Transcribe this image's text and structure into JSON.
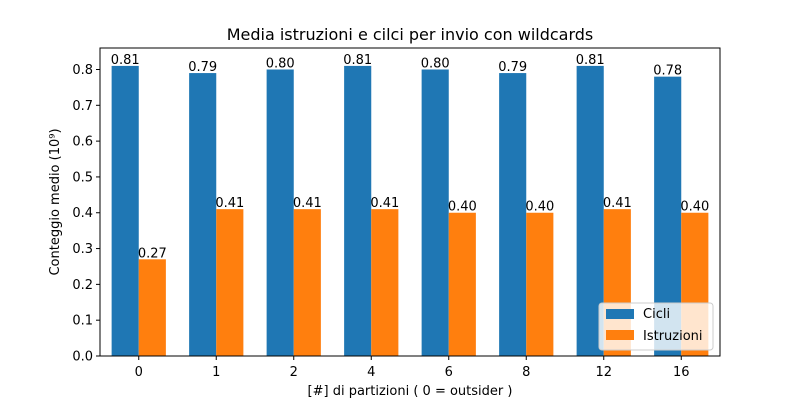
{
  "chart_data": {
    "type": "bar",
    "title": "Media istruzioni e cilci per invio con wildcards",
    "xlabel": "[#] di partizioni ( 0 = outsider )",
    "ylabel": "Conteggio medio (10⁹)",
    "categories": [
      "0",
      "1",
      "2",
      "4",
      "6",
      "8",
      "12",
      "16"
    ],
    "series": [
      {
        "name": "Cicli",
        "color": "#1f77b4",
        "values": [
          0.81,
          0.79,
          0.8,
          0.81,
          0.8,
          0.79,
          0.81,
          0.78
        ],
        "labels": [
          "0.81",
          "0.79",
          "0.80",
          "0.81",
          "0.80",
          "0.79",
          "0.81",
          "0.78"
        ]
      },
      {
        "name": "Istruzioni",
        "color": "#ff7f0e",
        "values": [
          0.27,
          0.41,
          0.41,
          0.41,
          0.4,
          0.4,
          0.41,
          0.4
        ],
        "labels": [
          "0.27",
          "0.41",
          "0.41",
          "0.41",
          "0.40",
          "0.40",
          "0.41",
          "0.40"
        ]
      }
    ],
    "ylim": [
      0,
      0.86
    ],
    "yticks": [
      "0.0",
      "0.1",
      "0.2",
      "0.3",
      "0.4",
      "0.5",
      "0.6",
      "0.7",
      "0.8"
    ],
    "grid": false,
    "legend_position": "bottom-right"
  }
}
